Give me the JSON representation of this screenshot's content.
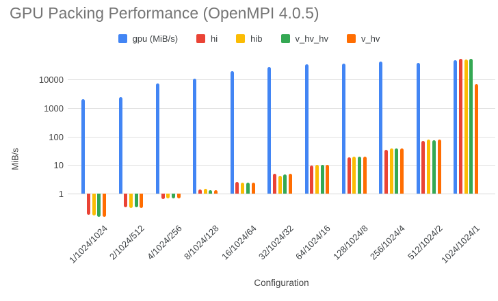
{
  "title": "GPU Packing Performance (OpenMPI 4.0.5)",
  "axes": {
    "y_title": "MiB/s",
    "x_title": "Configuration",
    "y_tick_labels": [
      "1",
      "10",
      "100",
      "1000",
      "10000"
    ]
  },
  "chart_data": {
    "type": "bar",
    "title": "GPU Packing Performance (OpenMPI 4.0.5)",
    "xlabel": "Configuration",
    "ylabel": "MiB/s",
    "y_scale": "log",
    "y_ticks": [
      1,
      10,
      100,
      1000,
      10000
    ],
    "ylim": [
      0.13,
      55000
    ],
    "grid": true,
    "legend_position": "top",
    "bar_baseline": 1,
    "categories": [
      "1/1024/1024",
      "2/1024/512",
      "4/1024/256",
      "8/1024/128",
      "16/1024/64",
      "32/1024/32",
      "64/1024/16",
      "128/1024/8",
      "256/1024/4",
      "512/1024/2",
      "1024/1024/1"
    ],
    "series": [
      {
        "name": "gpu (MiB/s)",
        "color": "#4285F4",
        "values": [
          2000,
          2400,
          7300,
          11000,
          20000,
          28000,
          35000,
          37000,
          42000,
          38000,
          48000
        ]
      },
      {
        "name": "hi",
        "color": "#EA4335",
        "values": [
          0.18,
          0.33,
          0.65,
          1.4,
          2.6,
          5.0,
          9.7,
          19,
          35,
          70,
          52000
        ]
      },
      {
        "name": "hib",
        "color": "#FBBC04",
        "values": [
          0.17,
          0.32,
          0.7,
          1.5,
          2.4,
          4.2,
          10,
          19.5,
          39,
          80,
          50000
        ]
      },
      {
        "name": "v_hv_hv",
        "color": "#34A853",
        "values": [
          0.15,
          0.33,
          0.7,
          1.3,
          2.4,
          4.6,
          10,
          20,
          39,
          74,
          53000
        ]
      },
      {
        "name": "v_hv",
        "color": "#FF6D01",
        "values": [
          0.15,
          0.32,
          0.7,
          1.35,
          2.5,
          5.0,
          10.2,
          19.5,
          38,
          78,
          7000
        ]
      }
    ]
  }
}
